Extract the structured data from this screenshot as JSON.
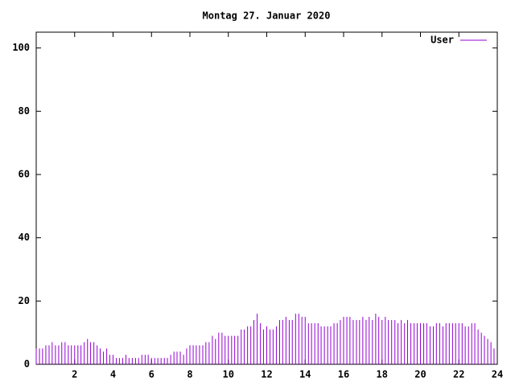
{
  "chart_data": {
    "type": "impulses",
    "title": "Montag 27. Januar 2020",
    "xlim": [
      0,
      24
    ],
    "xticks": [
      2,
      4,
      6,
      8,
      10,
      12,
      14,
      16,
      18,
      20,
      22,
      24
    ],
    "ylim": [
      0,
      105
    ],
    "yticks": [
      0,
      20,
      40,
      60,
      80,
      100
    ],
    "legend": "top-right",
    "series": [
      {
        "name": "User",
        "color": "#9400d3",
        "x": [
          0,
          0.17,
          0.33,
          0.5,
          0.67,
          0.83,
          1,
          1.17,
          1.33,
          1.5,
          1.67,
          1.83,
          2,
          2.17,
          2.33,
          2.5,
          2.67,
          2.83,
          3,
          3.17,
          3.33,
          3.5,
          3.67,
          3.83,
          4,
          4.17,
          4.33,
          4.5,
          4.67,
          4.83,
          5,
          5.17,
          5.33,
          5.5,
          5.67,
          5.83,
          6,
          6.17,
          6.33,
          6.5,
          6.67,
          6.83,
          7,
          7.17,
          7.33,
          7.5,
          7.67,
          7.83,
          8,
          8.17,
          8.33,
          8.5,
          8.67,
          8.83,
          9,
          9.17,
          9.33,
          9.5,
          9.67,
          9.83,
          10,
          10.17,
          10.33,
          10.5,
          10.67,
          10.83,
          11,
          11.17,
          11.33,
          11.5,
          11.67,
          11.83,
          12,
          12.17,
          12.33,
          12.5,
          12.67,
          12.83,
          13,
          13.17,
          13.33,
          13.5,
          13.67,
          13.83,
          14,
          14.17,
          14.33,
          14.5,
          14.67,
          14.83,
          15,
          15.17,
          15.33,
          15.5,
          15.67,
          15.83,
          16,
          16.17,
          16.33,
          16.5,
          16.67,
          16.83,
          17,
          17.17,
          17.33,
          17.5,
          17.67,
          17.83,
          18,
          18.17,
          18.33,
          18.5,
          18.67,
          18.83,
          19,
          19.17,
          19.33,
          19.5,
          19.67,
          19.83,
          20,
          20.17,
          20.33,
          20.5,
          20.67,
          20.83,
          21,
          21.17,
          21.33,
          21.5,
          21.67,
          21.83,
          22,
          22.17,
          22.33,
          22.5,
          22.67,
          22.83,
          23,
          23.17,
          23.33,
          23.5,
          23.67,
          23.83
        ],
        "values": [
          5,
          5,
          5,
          6,
          6,
          7,
          6,
          6,
          7,
          7,
          6,
          6,
          6,
          6,
          6,
          7,
          8,
          7,
          7,
          6,
          5,
          4,
          5,
          3,
          3,
          2,
          2,
          2,
          3,
          2,
          2,
          2,
          2,
          3,
          3,
          3,
          2,
          2,
          2,
          2,
          2,
          2,
          3,
          4,
          4,
          4,
          3,
          5,
          6,
          6,
          6,
          6,
          6,
          7,
          7,
          9,
          8,
          10,
          10,
          9,
          9,
          9,
          9,
          9,
          11,
          11,
          12,
          12,
          14,
          16,
          13,
          11,
          12,
          11,
          11,
          12,
          14,
          14,
          15,
          14,
          14,
          16,
          16,
          15,
          15,
          13,
          13,
          13,
          13,
          12,
          12,
          12,
          12,
          13,
          13,
          14,
          15,
          15,
          15,
          14,
          14,
          14,
          15,
          14,
          15,
          14,
          16,
          15,
          14,
          15,
          14,
          14,
          14,
          13,
          14,
          13,
          14,
          13,
          13,
          13,
          13,
          13,
          13,
          12,
          12,
          13,
          13,
          12,
          13,
          13,
          13,
          13,
          13,
          13,
          12,
          12,
          13,
          13,
          11,
          10,
          9,
          8,
          7,
          5
        ]
      }
    ]
  }
}
